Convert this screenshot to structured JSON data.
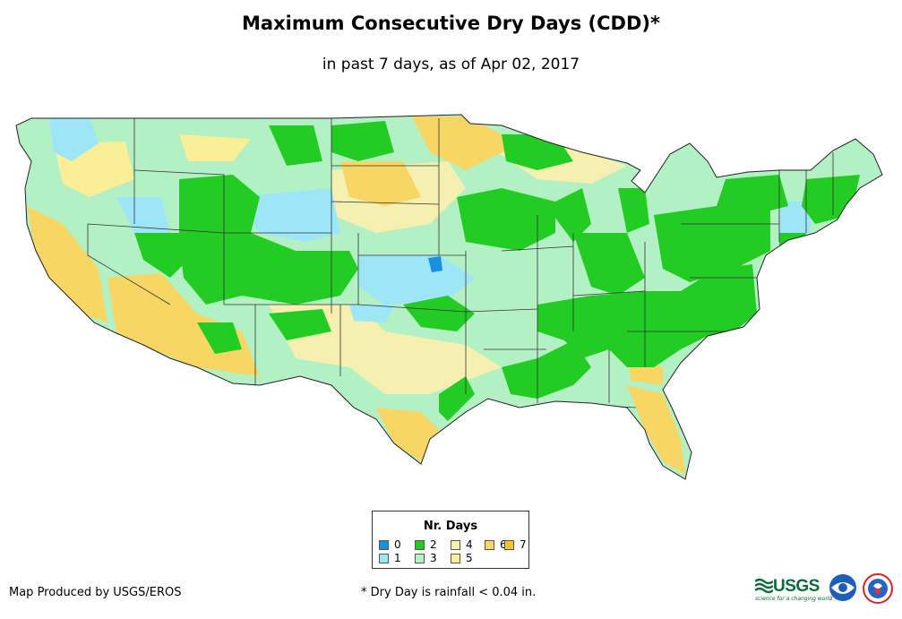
{
  "title": "Maximum Consecutive Dry Days (CDD)*",
  "subtitle": "in past 7 days, as of Apr 02, 2017",
  "legend": {
    "title": "Nr. Days",
    "items": [
      {
        "label": "0",
        "color": "#1a8fe0"
      },
      {
        "label": "1",
        "color": "#9ce6f7"
      },
      {
        "label": "2",
        "color": "#22cc22"
      },
      {
        "label": "3",
        "color": "#b3f0c4"
      },
      {
        "label": "4",
        "color": "#f5f0b0"
      },
      {
        "label": "5",
        "color": "#faee96"
      },
      {
        "label": "6",
        "color": "#f7d664"
      },
      {
        "label": "7",
        "color": "#f5c431"
      }
    ]
  },
  "footer": {
    "producer": "Map Produced by USGS/EROS",
    "footnote": "* Dry Day is rainfall < 0.04 in."
  },
  "logos": {
    "usgs": "USGS",
    "usgs_tagline": "science for a changing world"
  }
}
